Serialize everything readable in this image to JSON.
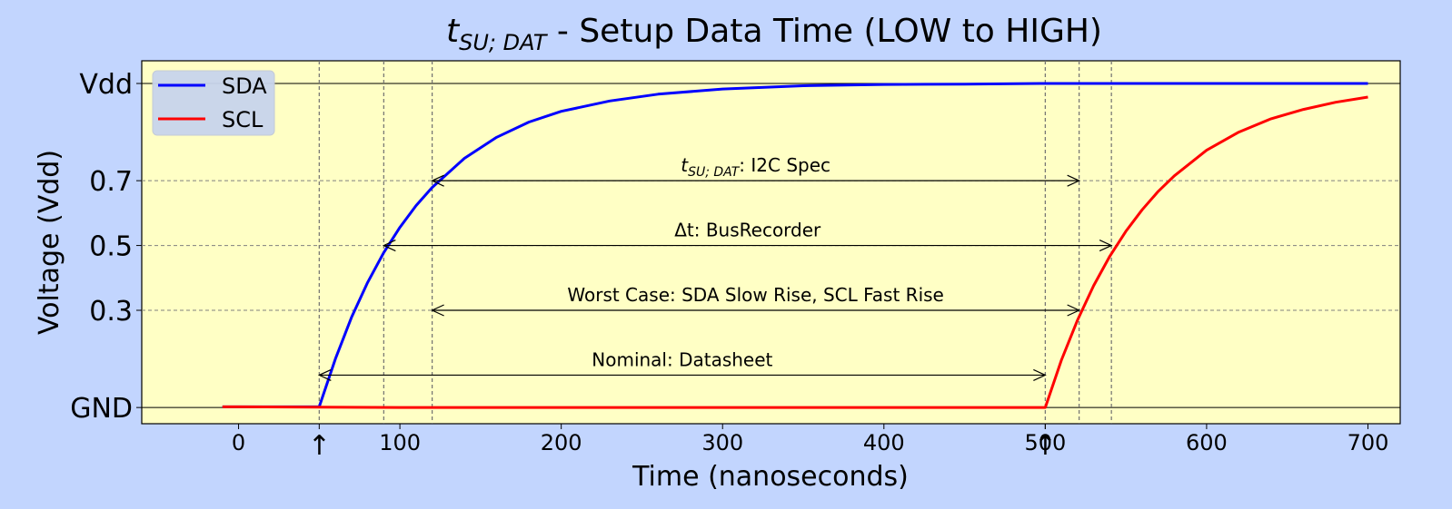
{
  "chart_data": {
    "type": "line",
    "title": {
      "symbol": "t",
      "subscript": "SU; DAT",
      "text": " - Setup Data Time (LOW to HIGH)"
    },
    "xlabel": "Time (nanoseconds)",
    "ylabel": "Voltage (Vdd)",
    "xlim": [
      -60,
      720
    ],
    "ylim": [
      -0.05,
      1.07
    ],
    "x_ticks": [
      0,
      100,
      200,
      300,
      400,
      500,
      600,
      700
    ],
    "x_markers": [
      {
        "x": 50,
        "label": "↑"
      },
      {
        "x": 500,
        "label": "↑"
      }
    ],
    "y_ticks": [
      {
        "value": 0,
        "label": "GND"
      },
      {
        "value": 0.3,
        "label": "0.3"
      },
      {
        "value": 0.5,
        "label": "0.5"
      },
      {
        "value": 0.7,
        "label": "0.7"
      },
      {
        "value": 1.0,
        "label": "Vdd"
      }
    ],
    "grid": "dashed, at tick levels",
    "legend_position": "top-left",
    "colors": {
      "background": "#c2d5fe",
      "plot_background": "#ffffc5"
    },
    "series": [
      {
        "name": "SDA",
        "color": "#0000ff",
        "x": [
          -10,
          0,
          50,
          60,
          70,
          80,
          90,
          100,
          110,
          120,
          140,
          160,
          180,
          200,
          230,
          260,
          300,
          350,
          400,
          450,
          500,
          550,
          600,
          650,
          700
        ],
        "values": [
          0.002,
          0.002,
          0.002,
          0.15,
          0.278,
          0.386,
          0.478,
          0.556,
          0.623,
          0.679,
          0.769,
          0.834,
          0.881,
          0.914,
          0.946,
          0.967,
          0.983,
          0.993,
          0.997,
          0.998,
          1.0,
          1.0,
          1.0,
          1.0,
          1.0
        ]
      },
      {
        "name": "SCL",
        "color": "#ff0000",
        "x": [
          -10,
          0,
          100,
          200,
          300,
          400,
          500,
          510,
          520,
          530,
          540,
          550,
          560,
          570,
          580,
          600,
          620,
          640,
          660,
          680,
          700
        ],
        "values": [
          0.002,
          0.002,
          0.0,
          0.0,
          0.0,
          0.0,
          0.0,
          0.146,
          0.27,
          0.376,
          0.467,
          0.544,
          0.61,
          0.667,
          0.715,
          0.794,
          0.85,
          0.891,
          0.92,
          0.942,
          0.958
        ]
      }
    ],
    "vlines": [
      50,
      90,
      120,
      500,
      521,
      541
    ],
    "annotations": [
      {
        "label_symbol": "t",
        "label_subscript": "SU; DAT",
        "label_text": ": I2C Spec",
        "x1": 120,
        "x2": 521,
        "y": 0.7
      },
      {
        "label_text": "Δt: BusRecorder",
        "x1": 90,
        "x2": 541,
        "y": 0.5
      },
      {
        "label_text": "Worst Case: SDA Slow Rise, SCL Fast Rise",
        "x1": 120,
        "x2": 521,
        "y": 0.3
      },
      {
        "label_text": "Nominal: Datasheet",
        "x1": 50,
        "x2": 500,
        "y": 0.1
      }
    ]
  }
}
